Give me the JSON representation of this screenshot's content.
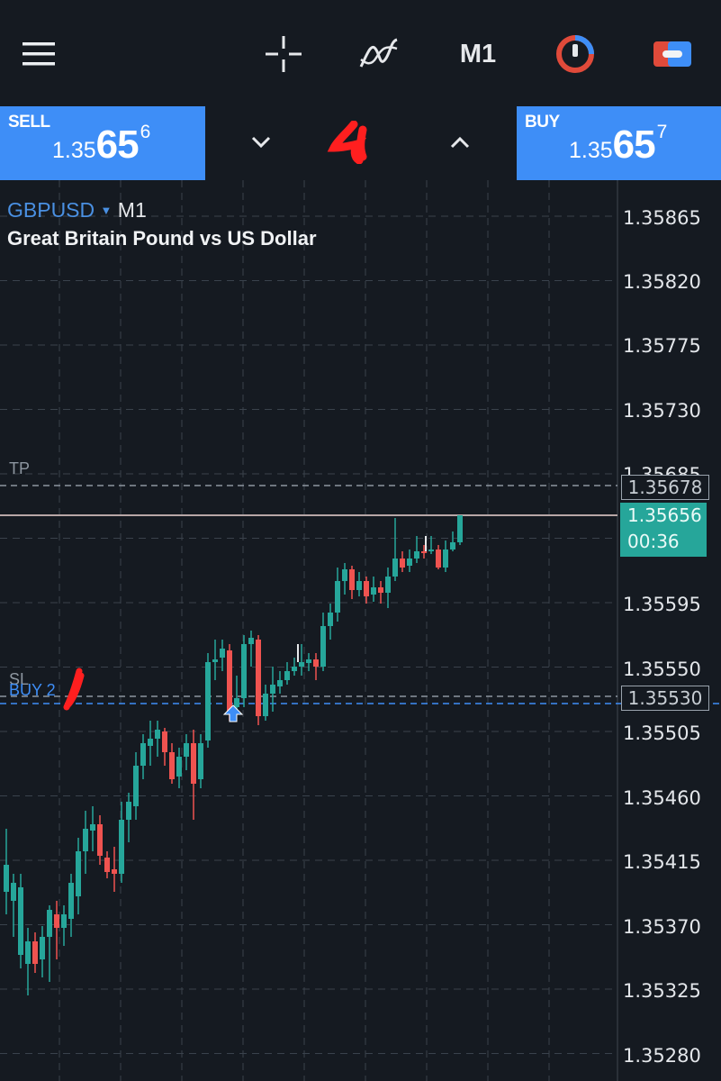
{
  "toolbar": {
    "menu_icon": "hamburger-menu-icon",
    "crosshair_icon": "crosshair-icon",
    "indicators_icon": "indicators-icon",
    "timeframe": "M1",
    "clock_icon": "trade-clock-icon",
    "trade_icon": "trade-ticket-icon"
  },
  "trade": {
    "sell_label": "SELL",
    "sell_price_small": "1.35",
    "sell_price_big": "65",
    "sell_price_sup": "6",
    "buy_label": "BUY",
    "buy_price_small": "1.35",
    "buy_price_big": "65",
    "buy_price_sup": "7",
    "down_icon": "chevron-down-icon",
    "up_icon": "chevron-up-icon",
    "colors": {
      "button": "#3e8ef7",
      "scribble": "#ff1f1f"
    }
  },
  "chart": {
    "symbol": "GBPUSD",
    "symbol_dropdown_icon": "triangle-down-icon",
    "timeframe": "M1",
    "description": "Great Britain Pound vs US Dollar",
    "y_labels": [
      "1.35865",
      "1.35820",
      "1.35775",
      "1.35730",
      "1.35685",
      "1.35595",
      "1.35550",
      "1.35505",
      "1.35460",
      "1.35415",
      "1.35370",
      "1.35325",
      "1.35280"
    ],
    "tp_label": "TP",
    "tp_price": "1.35678",
    "sl_label": "SL",
    "order_label": "BUY 2",
    "sl_price": "1.35530",
    "current_price": "1.35656",
    "countdown": "00:36",
    "colors": {
      "bull": "#26a69a",
      "bear": "#ef5350",
      "grid": "#3a424c",
      "entry_line": "#3e8ef7"
    }
  }
}
